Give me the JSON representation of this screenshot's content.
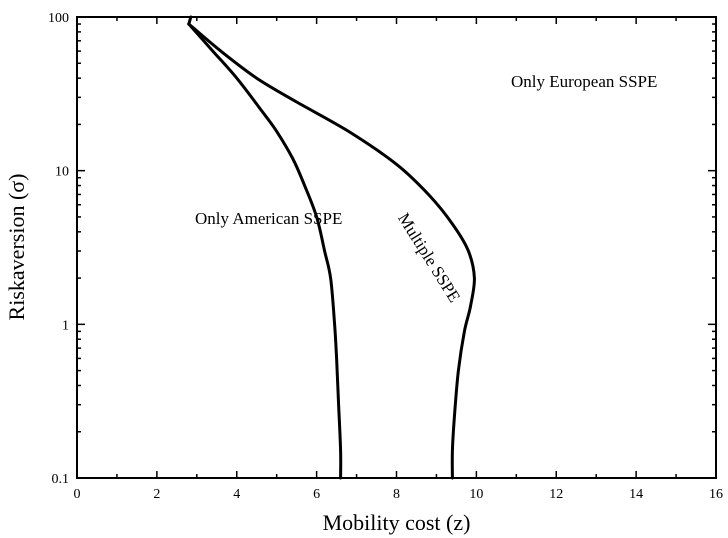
{
  "chart_data": {
    "type": "line",
    "xlabel": "Mobility cost (z)",
    "ylabel": "Riskaversion (σ)",
    "xlim": [
      0,
      16
    ],
    "ylim": [
      0.1,
      100
    ],
    "y_scale": "log",
    "grid": false,
    "x_ticks": [
      0,
      2,
      4,
      6,
      8,
      10,
      12,
      14,
      16
    ],
    "y_ticks": [
      0.1,
      1,
      10,
      100
    ],
    "y_tick_labels": [
      "0.1",
      "1",
      "10",
      "100"
    ],
    "series": [
      {
        "x": [
          2.8,
          3.4,
          4.0,
          4.6,
          5.0,
          5.4,
          5.7,
          6.0,
          6.2,
          6.35,
          6.45,
          6.5,
          6.55,
          6.6,
          6.6
        ],
        "y": [
          90,
          60,
          40,
          25,
          18,
          12,
          8,
          5,
          3,
          2,
          1,
          0.6,
          0.3,
          0.15,
          0.1
        ]
      },
      {
        "x": [
          2.8,
          3.6,
          4.5,
          5.5,
          6.8,
          8.0,
          8.8,
          9.4,
          9.8,
          9.95,
          9.85,
          9.7,
          9.55,
          9.45,
          9.4,
          9.4
        ],
        "y": [
          90,
          60,
          40,
          28,
          18,
          11,
          7,
          4.5,
          3,
          2,
          1.3,
          0.9,
          0.5,
          0.25,
          0.15,
          0.1
        ]
      }
    ],
    "annotations": [
      {
        "text": "Only European SSPE",
        "x": 12.7,
        "y": 35,
        "rotate": 0
      },
      {
        "text": "Only American SSPE",
        "x": 4.8,
        "y": 4.5,
        "rotate": 0
      },
      {
        "text": "Multiple SSPE",
        "x": 8.7,
        "y": 2.6,
        "rotate": 58
      }
    ]
  }
}
